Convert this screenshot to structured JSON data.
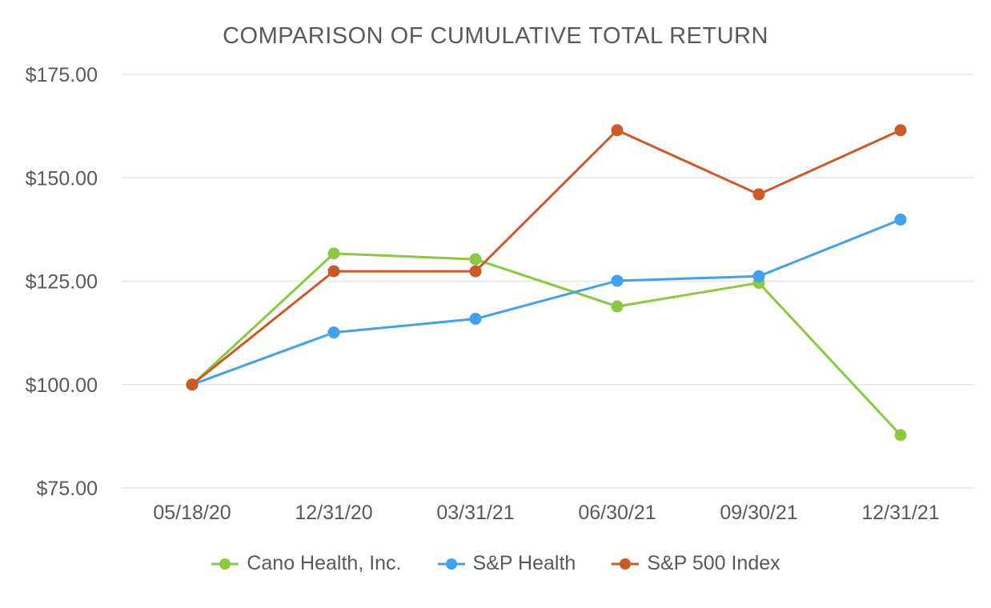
{
  "chart_data": {
    "type": "line",
    "title": "COMPARISON OF CUMULATIVE TOTAL RETURN",
    "categories": [
      "05/18/20",
      "12/31/20",
      "03/31/21",
      "06/30/21",
      "09/30/21",
      "12/31/21"
    ],
    "series": [
      {
        "name": "Cano Health, Inc.",
        "color": "#8CC841",
        "values": [
          100.0,
          131.7,
          130.3,
          118.9,
          124.6,
          87.8
        ]
      },
      {
        "name": "S&P Health",
        "color": "#41A1EC",
        "values": [
          100.0,
          112.6,
          115.9,
          125.1,
          126.2,
          139.9
        ]
      },
      {
        "name": "S&P 500 Index",
        "color": "#CC5A28",
        "values": [
          100.0,
          127.4,
          127.4,
          161.5,
          146.0,
          161.5
        ]
      }
    ],
    "y_axis": {
      "ticks": [
        {
          "label": "$175.00",
          "value": 175
        },
        {
          "label": "$150.00",
          "value": 150
        },
        {
          "label": "$125.00",
          "value": 125
        },
        {
          "label": "$100.00",
          "value": 100
        },
        {
          "label": "$75.00",
          "value": 75
        }
      ]
    },
    "ylim": [
      75,
      175
    ],
    "xlabel": "",
    "ylabel": "",
    "grid": true,
    "legend_position": "bottom",
    "colors": {
      "text": "#595959",
      "grid": "#E6E6E6",
      "background": "#FFFFFF"
    }
  }
}
